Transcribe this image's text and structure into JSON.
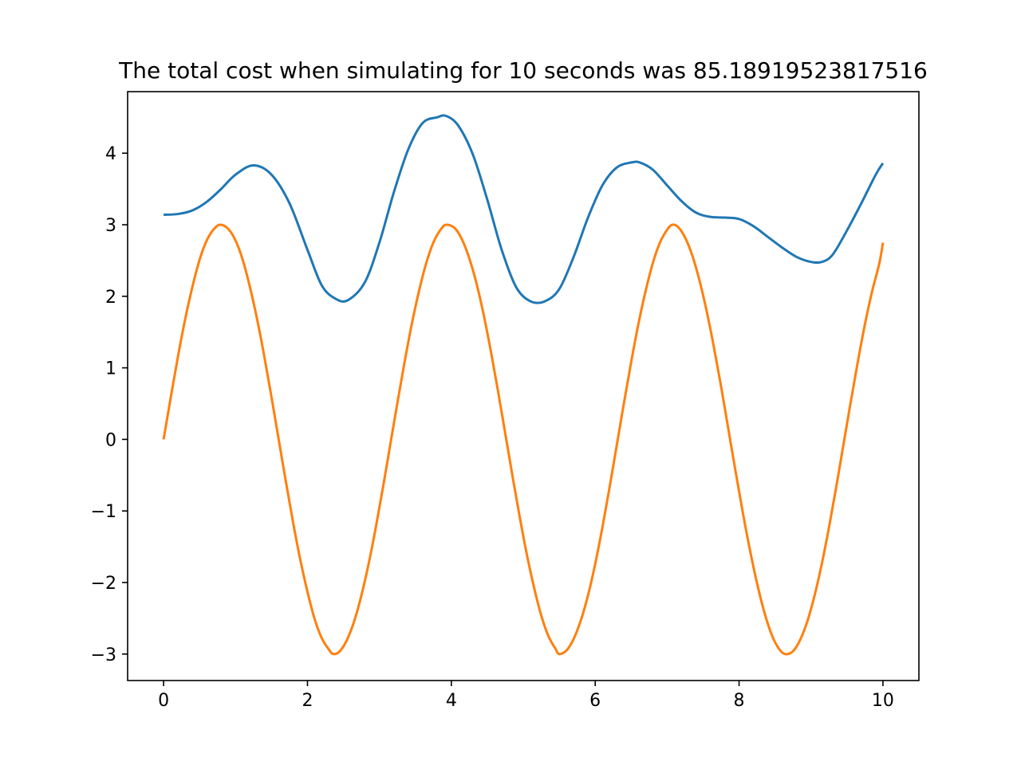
{
  "chart_data": {
    "type": "line",
    "title": "The total cost when simulating for 10 seconds was 85.18919523817516",
    "xlabel": "",
    "ylabel": "",
    "xlim": [
      -0.5,
      10.5
    ],
    "ylim": [
      -3.37,
      4.86
    ],
    "x_ticks": [
      0,
      2,
      4,
      6,
      8,
      10
    ],
    "x_tick_labels": [
      "0",
      "2",
      "4",
      "6",
      "8",
      "10"
    ],
    "y_ticks": [
      -3,
      -2,
      -1,
      0,
      1,
      2,
      3,
      4
    ],
    "y_tick_labels": [
      "−3",
      "−2",
      "−1",
      "0",
      "1",
      "2",
      "3",
      "4"
    ],
    "grid": false,
    "legend": "none",
    "series": [
      {
        "color": "#1f77b4",
        "x": [
          0,
          0.2,
          0.4,
          0.6,
          0.8,
          1.0,
          1.25,
          1.5,
          1.75,
          2.0,
          2.2,
          2.4,
          2.57,
          2.8,
          3.0,
          3.2,
          3.4,
          3.6,
          3.8,
          3.93,
          4.1,
          4.3,
          4.5,
          4.7,
          4.9,
          5.1,
          5.3,
          5.5,
          5.7,
          5.9,
          6.1,
          6.3,
          6.5,
          6.62,
          6.8,
          7.0,
          7.2,
          7.4,
          7.6,
          7.8,
          8.0,
          8.2,
          8.4,
          8.6,
          8.8,
          9.0,
          9.15,
          9.3,
          9.5,
          9.7,
          9.9,
          10.0
        ],
        "y": [
          3.14,
          3.15,
          3.2,
          3.32,
          3.5,
          3.7,
          3.83,
          3.7,
          3.3,
          2.65,
          2.15,
          1.96,
          1.95,
          2.2,
          2.75,
          3.45,
          4.05,
          4.42,
          4.5,
          4.52,
          4.38,
          3.98,
          3.35,
          2.65,
          2.13,
          1.93,
          1.93,
          2.1,
          2.55,
          3.1,
          3.55,
          3.8,
          3.87,
          3.87,
          3.77,
          3.55,
          3.33,
          3.17,
          3.11,
          3.1,
          3.08,
          2.98,
          2.83,
          2.68,
          2.55,
          2.48,
          2.48,
          2.58,
          2.92,
          3.3,
          3.7,
          3.86
        ]
      },
      {
        "color": "#ff7f0e",
        "x": [
          0,
          0.1,
          0.2,
          0.3,
          0.4,
          0.5,
          0.6,
          0.7,
          0.79,
          0.9,
          1.0,
          1.1,
          1.2,
          1.3,
          1.4,
          1.5,
          1.6,
          1.7,
          1.8,
          1.9,
          2.0,
          2.1,
          2.2,
          2.3,
          2.36,
          2.45,
          2.55,
          2.65,
          2.75,
          2.85,
          2.95,
          3.05,
          3.15,
          3.25,
          3.35,
          3.45,
          3.55,
          3.65,
          3.75,
          3.85,
          3.93,
          4.05,
          4.15,
          4.25,
          4.35,
          4.45,
          4.55,
          4.65,
          4.75,
          4.85,
          4.95,
          5.05,
          5.15,
          5.25,
          5.35,
          5.45,
          5.5,
          5.6,
          5.7,
          5.8,
          5.9,
          6.0,
          6.1,
          6.2,
          6.3,
          6.4,
          6.5,
          6.6,
          6.7,
          6.8,
          6.9,
          7.0,
          7.07,
          7.15,
          7.25,
          7.35,
          7.45,
          7.55,
          7.65,
          7.75,
          7.85,
          7.95,
          8.05,
          8.15,
          8.25,
          8.35,
          8.45,
          8.55,
          8.64,
          8.75,
          8.85,
          8.95,
          9.05,
          9.15,
          9.25,
          9.35,
          9.45,
          9.55,
          9.65,
          9.75,
          9.85,
          9.95,
          10.0
        ],
        "y": [
          0.0,
          0.59,
          1.16,
          1.68,
          2.13,
          2.51,
          2.78,
          2.94,
          3.0,
          2.94,
          2.78,
          2.51,
          2.13,
          1.68,
          1.16,
          0.59,
          0.0,
          -0.59,
          -1.16,
          -1.68,
          -2.13,
          -2.51,
          -2.78,
          -2.94,
          -3.0,
          -2.96,
          -2.8,
          -2.54,
          -2.18,
          -1.74,
          -1.23,
          -0.67,
          -0.08,
          0.51,
          1.08,
          1.61,
          2.07,
          2.46,
          2.75,
          2.93,
          3.0,
          2.95,
          2.79,
          2.53,
          2.18,
          1.74,
          1.23,
          0.67,
          0.08,
          -0.51,
          -1.08,
          -1.61,
          -2.07,
          -2.46,
          -2.75,
          -2.93,
          -3.0,
          -2.95,
          -2.79,
          -2.53,
          -2.18,
          -1.74,
          -1.23,
          -0.67,
          -0.08,
          0.51,
          1.08,
          1.61,
          2.07,
          2.46,
          2.75,
          2.93,
          3.0,
          2.97,
          2.82,
          2.57,
          2.22,
          1.79,
          1.29,
          0.74,
          0.15,
          -0.44,
          -1.01,
          -1.54,
          -2.01,
          -2.41,
          -2.72,
          -2.92,
          -3.0,
          -2.96,
          -2.8,
          -2.54,
          -2.18,
          -1.74,
          -1.23,
          -0.67,
          -0.08,
          0.51,
          1.08,
          1.61,
          2.07,
          2.46,
          2.75
        ]
      }
    ]
  }
}
